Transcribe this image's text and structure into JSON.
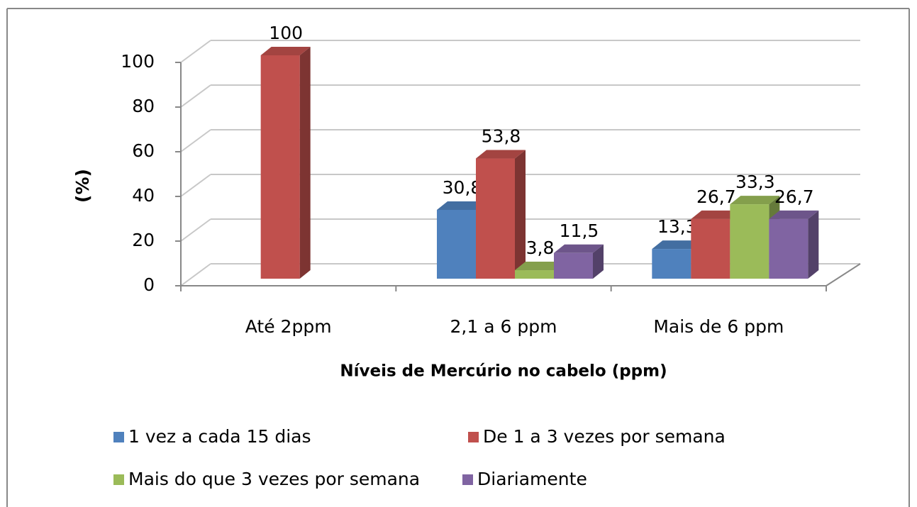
{
  "chart_data": {
    "type": "bar3d",
    "x_label": "Níveis de Mercúrio no cabelo (ppm)",
    "y_label": "(%)",
    "categories": [
      "Até 2ppm",
      "2,1 a 6 ppm",
      "Mais de 6 ppm"
    ],
    "series": [
      {
        "name": "1 vez a cada 15 dias",
        "color": "#4f81bd",
        "values": [
          null,
          30.8,
          13.3
        ],
        "value_labels": [
          null,
          "30,8",
          "13,3"
        ]
      },
      {
        "name": "De 1 a 3 vezes por semana",
        "color": "#c0504d",
        "values": [
          100,
          53.8,
          26.7
        ],
        "value_labels": [
          "100",
          "53,8",
          "26,7"
        ]
      },
      {
        "name": "Mais do que 3 vezes por semana",
        "color": "#9bbb59",
        "values": [
          null,
          3.8,
          33.3
        ],
        "value_labels": [
          null,
          "3,8",
          "33,3"
        ]
      },
      {
        "name": "Diariamente",
        "color": "#8064a2",
        "values": [
          null,
          11.5,
          26.7
        ],
        "value_labels": [
          null,
          "11,5",
          "26,7"
        ]
      }
    ],
    "ylim": [
      0,
      100
    ],
    "yticks": [
      0,
      20,
      40,
      60,
      80,
      100
    ],
    "grid": true,
    "legend": "bottom"
  }
}
